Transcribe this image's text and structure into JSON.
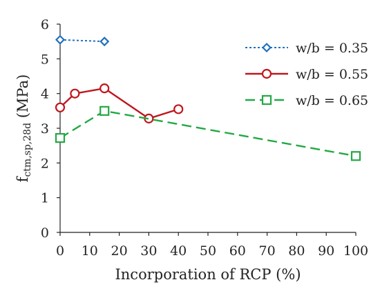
{
  "chart_data": {
    "type": "line",
    "title": "",
    "xlabel": "Incorporation of RCP (%)",
    "ylabel": {
      "base": "f",
      "subscript": "ctm,sp,28d",
      "unit": " (MPa)"
    },
    "xlim": [
      0,
      100
    ],
    "ylim": [
      0,
      6
    ],
    "xticks": [
      0,
      10,
      20,
      30,
      40,
      50,
      60,
      70,
      80,
      90,
      100
    ],
    "yticks": [
      0,
      1,
      2,
      3,
      4,
      5,
      6
    ],
    "grid": false,
    "legend_position": "top-right",
    "series": [
      {
        "name": "w/b = 0.35",
        "color": "#1f6fbf",
        "line_style": "dotted",
        "marker": "diamond",
        "x": [
          0,
          15
        ],
        "y": [
          5.55,
          5.5
        ]
      },
      {
        "name": "w/b = 0.55",
        "color": "#c0161e",
        "line_style": "solid",
        "marker": "circle",
        "x": [
          0,
          5,
          15,
          30,
          40
        ],
        "y": [
          3.6,
          4.0,
          4.15,
          3.28,
          3.55
        ]
      },
      {
        "name": "w/b = 0.65",
        "color": "#22a844",
        "line_style": "dashed",
        "marker": "square",
        "x": [
          0,
          15,
          100
        ],
        "y": [
          2.72,
          3.5,
          2.2
        ]
      }
    ]
  }
}
